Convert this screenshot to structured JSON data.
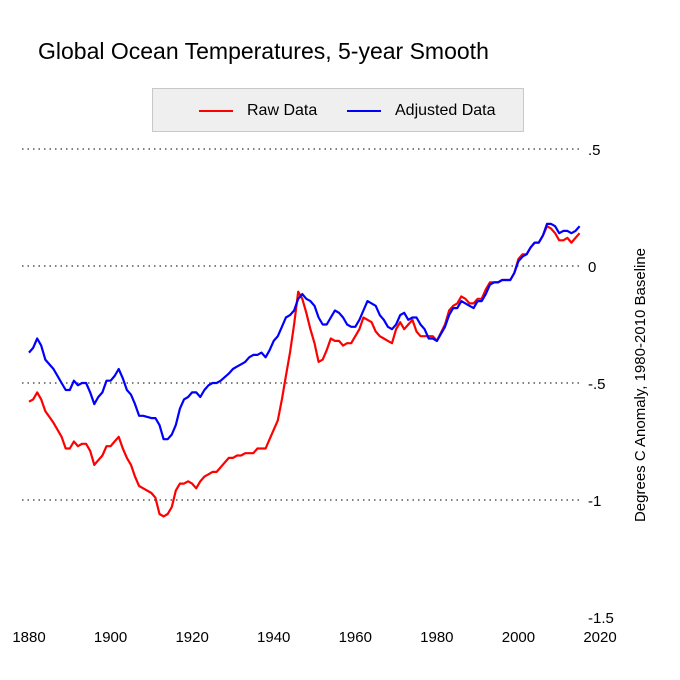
{
  "chart_data": {
    "type": "line",
    "title": "Global Ocean Temperatures, 5-year Smooth",
    "xlabel": "",
    "ylabel": "Degrees C Anomaly, 1980-2010 Baseline",
    "xlim": [
      1880,
      2020
    ],
    "ylim": [
      -1.5,
      0.5
    ],
    "x_ticks": [
      "1880",
      "1900",
      "1920",
      "1940",
      "1960",
      "1980",
      "2000",
      "2020"
    ],
    "y_ticks": [
      {
        "value": 0.5,
        "label": ".5"
      },
      {
        "value": 0,
        "label": "0"
      },
      {
        "value": -0.5,
        "label": "-.5"
      },
      {
        "value": -1,
        "label": "-1"
      },
      {
        "value": -1.5,
        "label": "-1.5"
      }
    ],
    "grid": "horizontal dotted",
    "legend_position": "top-center",
    "x": [
      1880,
      1881,
      1882,
      1883,
      1884,
      1886,
      1888,
      1889,
      1890,
      1891,
      1892,
      1893,
      1894,
      1895,
      1896,
      1897,
      1898,
      1899,
      1900,
      1901,
      1902,
      1903,
      1904,
      1905,
      1906,
      1907,
      1908,
      1910,
      1911,
      1912,
      1913,
      1914,
      1915,
      1916,
      1917,
      1918,
      1919,
      1920,
      1921,
      1922,
      1923,
      1924,
      1925,
      1926,
      1927,
      1929,
      1930,
      1931,
      1932,
      1933,
      1934,
      1935,
      1936,
      1937,
      1938,
      1939,
      1940,
      1941,
      1942,
      1943,
      1944,
      1945,
      1946,
      1947,
      1948,
      1949,
      1950,
      1951,
      1952,
      1953,
      1954,
      1955,
      1956,
      1957,
      1958,
      1959,
      1960,
      1961,
      1962,
      1963,
      1964,
      1965,
      1966,
      1967,
      1968,
      1969,
      1970,
      1971,
      1972,
      1973,
      1974,
      1975,
      1976,
      1977,
      1978,
      1979,
      1980,
      1982,
      1983,
      1984,
      1985,
      1986,
      1987,
      1988,
      1989,
      1990,
      1991,
      1992,
      1993,
      1994,
      1995,
      1996,
      1997,
      1998,
      1999,
      2000,
      2001,
      2002,
      2003,
      2004,
      2005,
      2006,
      2007,
      2008,
      2009,
      2010,
      2011,
      2012,
      2013,
      2014,
      2015
    ],
    "series": [
      {
        "name": "Raw Data",
        "color": "#ff0000",
        "values": [
          -0.58,
          -0.57,
          -0.54,
          -0.57,
          -0.62,
          -0.67,
          -0.73,
          -0.78,
          -0.78,
          -0.75,
          -0.77,
          -0.76,
          -0.76,
          -0.79,
          -0.85,
          -0.83,
          -0.81,
          -0.77,
          -0.77,
          -0.75,
          -0.73,
          -0.78,
          -0.82,
          -0.85,
          -0.9,
          -0.94,
          -0.95,
          -0.97,
          -0.99,
          -1.06,
          -1.07,
          -1.06,
          -1.03,
          -0.96,
          -0.93,
          -0.93,
          -0.92,
          -0.93,
          -0.95,
          -0.92,
          -0.9,
          -0.89,
          -0.88,
          -0.88,
          -0.86,
          -0.82,
          -0.82,
          -0.81,
          -0.81,
          -0.8,
          -0.8,
          -0.8,
          -0.78,
          -0.78,
          -0.78,
          -0.74,
          -0.7,
          -0.66,
          -0.57,
          -0.47,
          -0.37,
          -0.25,
          -0.11,
          -0.14,
          -0.2,
          -0.27,
          -0.33,
          -0.41,
          -0.4,
          -0.36,
          -0.31,
          -0.32,
          -0.32,
          -0.34,
          -0.33,
          -0.33,
          -0.3,
          -0.27,
          -0.22,
          -0.23,
          -0.24,
          -0.28,
          -0.3,
          -0.31,
          -0.32,
          -0.33,
          -0.27,
          -0.24,
          -0.27,
          -0.25,
          -0.23,
          -0.28,
          -0.3,
          -0.3,
          -0.3,
          -0.3,
          -0.32,
          -0.25,
          -0.19,
          -0.17,
          -0.16,
          -0.13,
          -0.14,
          -0.16,
          -0.16,
          -0.14,
          -0.14,
          -0.1,
          -0.07,
          -0.07,
          -0.07,
          -0.06,
          -0.06,
          -0.06,
          -0.03,
          0.03,
          0.05,
          0.05,
          0.08,
          0.1,
          0.1,
          0.13,
          0.17,
          0.16,
          0.14,
          0.11,
          0.11,
          0.12,
          0.1,
          0.12,
          0.14
        ]
      },
      {
        "name": "Adjusted Data",
        "color": "#0000ff",
        "values": [
          -0.37,
          -0.35,
          -0.31,
          -0.34,
          -0.4,
          -0.44,
          -0.5,
          -0.53,
          -0.53,
          -0.49,
          -0.51,
          -0.5,
          -0.5,
          -0.54,
          -0.59,
          -0.56,
          -0.54,
          -0.49,
          -0.49,
          -0.47,
          -0.44,
          -0.48,
          -0.53,
          -0.55,
          -0.59,
          -0.64,
          -0.64,
          -0.65,
          -0.65,
          -0.68,
          -0.74,
          -0.74,
          -0.72,
          -0.68,
          -0.61,
          -0.57,
          -0.56,
          -0.54,
          -0.54,
          -0.56,
          -0.53,
          -0.51,
          -0.5,
          -0.5,
          -0.49,
          -0.46,
          -0.44,
          -0.43,
          -0.42,
          -0.41,
          -0.39,
          -0.38,
          -0.38,
          -0.37,
          -0.39,
          -0.36,
          -0.32,
          -0.3,
          -0.26,
          -0.22,
          -0.21,
          -0.19,
          -0.14,
          -0.12,
          -0.14,
          -0.15,
          -0.17,
          -0.22,
          -0.25,
          -0.25,
          -0.22,
          -0.19,
          -0.2,
          -0.22,
          -0.25,
          -0.26,
          -0.26,
          -0.23,
          -0.19,
          -0.15,
          -0.16,
          -0.17,
          -0.21,
          -0.23,
          -0.26,
          -0.27,
          -0.25,
          -0.21,
          -0.2,
          -0.23,
          -0.22,
          -0.22,
          -0.25,
          -0.27,
          -0.31,
          -0.31,
          -0.32,
          -0.26,
          -0.21,
          -0.18,
          -0.18,
          -0.15,
          -0.16,
          -0.17,
          -0.18,
          -0.15,
          -0.15,
          -0.12,
          -0.08,
          -0.07,
          -0.07,
          -0.06,
          -0.06,
          -0.06,
          -0.03,
          0.02,
          0.04,
          0.05,
          0.08,
          0.1,
          0.1,
          0.13,
          0.18,
          0.18,
          0.17,
          0.14,
          0.15,
          0.15,
          0.14,
          0.15,
          0.17
        ]
      }
    ]
  }
}
